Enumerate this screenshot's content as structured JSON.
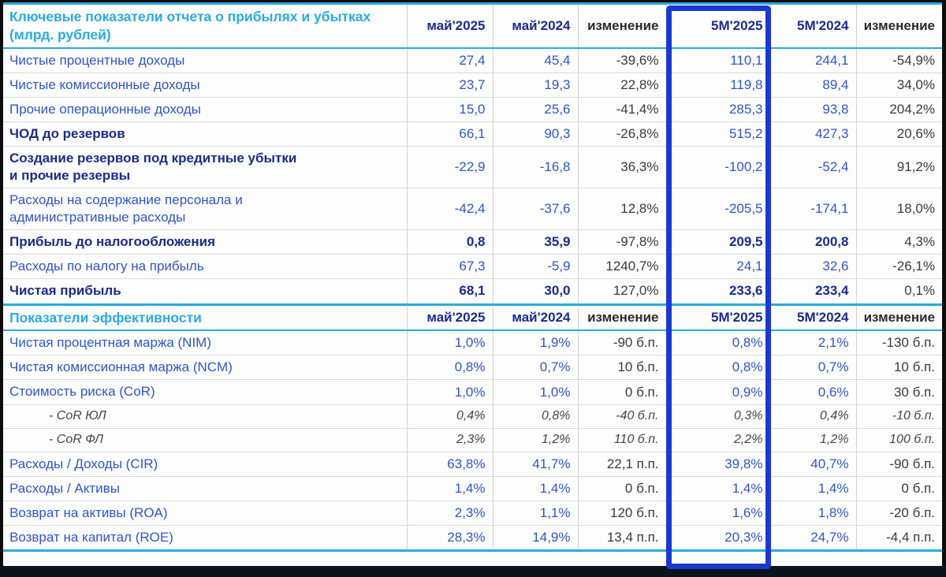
{
  "colors": {
    "accent_cyan": "#29ABE2",
    "highlight_blue": "#1B38CF",
    "label_blue": "#2F55CB",
    "bold_navy": "#1A2B8C",
    "change_gray": "#3A3A3A",
    "grid_gray": "#D2D2D2"
  },
  "highlight": {
    "column": "5М'2025"
  },
  "chart_data": [
    {
      "type": "table",
      "title": "Ключевые показатели отчета о прибылях и убытках\n(млрд. рублей)",
      "columns": [
        "май'2025",
        "май'2024",
        "изменение",
        "5М'2025",
        "5М'2024",
        "изменение"
      ],
      "highlighted_column": "5М'2025",
      "rows": [
        {
          "label": "Чистые процентные доходы",
          "style": "normal",
          "values": [
            "27,4",
            "45,4",
            "-39,6%",
            "110,1",
            "244,1",
            "-54,9%"
          ]
        },
        {
          "label": "Чистые комиссионные доходы",
          "style": "normal",
          "values": [
            "23,7",
            "19,3",
            "22,8%",
            "119,8",
            "89,4",
            "34,0%"
          ]
        },
        {
          "label": "Прочие операционные доходы",
          "style": "normal",
          "values": [
            "15,0",
            "25,6",
            "-41,4%",
            "285,3",
            "93,8",
            "204,2%"
          ]
        },
        {
          "label": "ЧОД до резервов",
          "style": "bold-label",
          "values": [
            "66,1",
            "90,3",
            "-26,8%",
            "515,2",
            "427,3",
            "20,6%"
          ]
        },
        {
          "label": "Создание резервов под кредитные убытки\nи прочие резервы",
          "style": "bold-label",
          "values": [
            "-22,9",
            "-16,8",
            "36,3%",
            "-100,2",
            "-52,4",
            "91,2%"
          ]
        },
        {
          "label": "Расходы на содержание персонала и\nадминистративные расходы",
          "style": "normal",
          "values": [
            "-42,4",
            "-37,6",
            "12,8%",
            "-205,5",
            "-174,1",
            "18,0%"
          ]
        },
        {
          "label": "Прибыль до налогообложения",
          "style": "bold",
          "values": [
            "0,8",
            "35,9",
            "-97,8%",
            "209,5",
            "200,8",
            "4,3%"
          ]
        },
        {
          "label": "Расходы по налогу на прибыль",
          "style": "normal",
          "values": [
            "67,3",
            "-5,9",
            "1240,7%",
            "24,1",
            "32,6",
            "-26,1%"
          ]
        },
        {
          "label": "Чистая прибыль",
          "style": "bold",
          "values": [
            "68,1",
            "30,0",
            "127,0%",
            "233,6",
            "233,4",
            "0,1%"
          ]
        }
      ]
    },
    {
      "type": "table",
      "title": "Показатели  эффективности",
      "columns": [
        "май'2025",
        "май'2024",
        "изменение",
        "5М'2025",
        "5М'2024",
        "изменение"
      ],
      "highlighted_column": "5М'2025",
      "rows": [
        {
          "label": "Чистая процентная маржа (NIM)",
          "style": "normal",
          "values": [
            "1,0%",
            "1,9%",
            "-90 б.п.",
            "0,8%",
            "2,1%",
            "-130 б.п."
          ]
        },
        {
          "label": "Чистая комиссионная маржа (NCM)",
          "style": "normal",
          "values": [
            "0,8%",
            "0,7%",
            "10 б.п.",
            "0,8%",
            "0,7%",
            "10 б.п."
          ]
        },
        {
          "label": "Стоимость риска (CoR)",
          "style": "normal",
          "values": [
            "1,0%",
            "1,0%",
            "0 б.п.",
            "0,9%",
            "0,6%",
            "30 б.п."
          ]
        },
        {
          "label": "-  CoR ЮЛ",
          "style": "italic",
          "values": [
            "0,4%",
            "0,8%",
            "-40 б.п.",
            "0,3%",
            "0,4%",
            "-10 б.п."
          ]
        },
        {
          "label": "-  CoR ФЛ",
          "style": "italic",
          "values": [
            "2,3%",
            "1,2%",
            "110 б.п.",
            "2,2%",
            "1,2%",
            "100 б.п."
          ]
        },
        {
          "label": "Расходы / Доходы (CIR)",
          "style": "normal",
          "values": [
            "63,8%",
            "41,7%",
            "22,1 п.п.",
            "39,8%",
            "40,7%",
            "-90 б.п."
          ]
        },
        {
          "label": "Расходы / Активы",
          "style": "normal",
          "values": [
            "1,4%",
            "1,4%",
            "0 б.п.",
            "1,4%",
            "1,4%",
            "0 б.п."
          ]
        },
        {
          "label": "Возврат на активы (ROA)",
          "style": "normal",
          "values": [
            "2,3%",
            "1,1%",
            "120 б.п.",
            "1,6%",
            "1,8%",
            "-20 б.п."
          ]
        },
        {
          "label": "Возврат на капитал (ROE)",
          "style": "normal",
          "values": [
            "28,3%",
            "14,9%",
            "13,4 п.п.",
            "20,3%",
            "24,7%",
            "-4,4 п.п."
          ]
        }
      ]
    }
  ]
}
